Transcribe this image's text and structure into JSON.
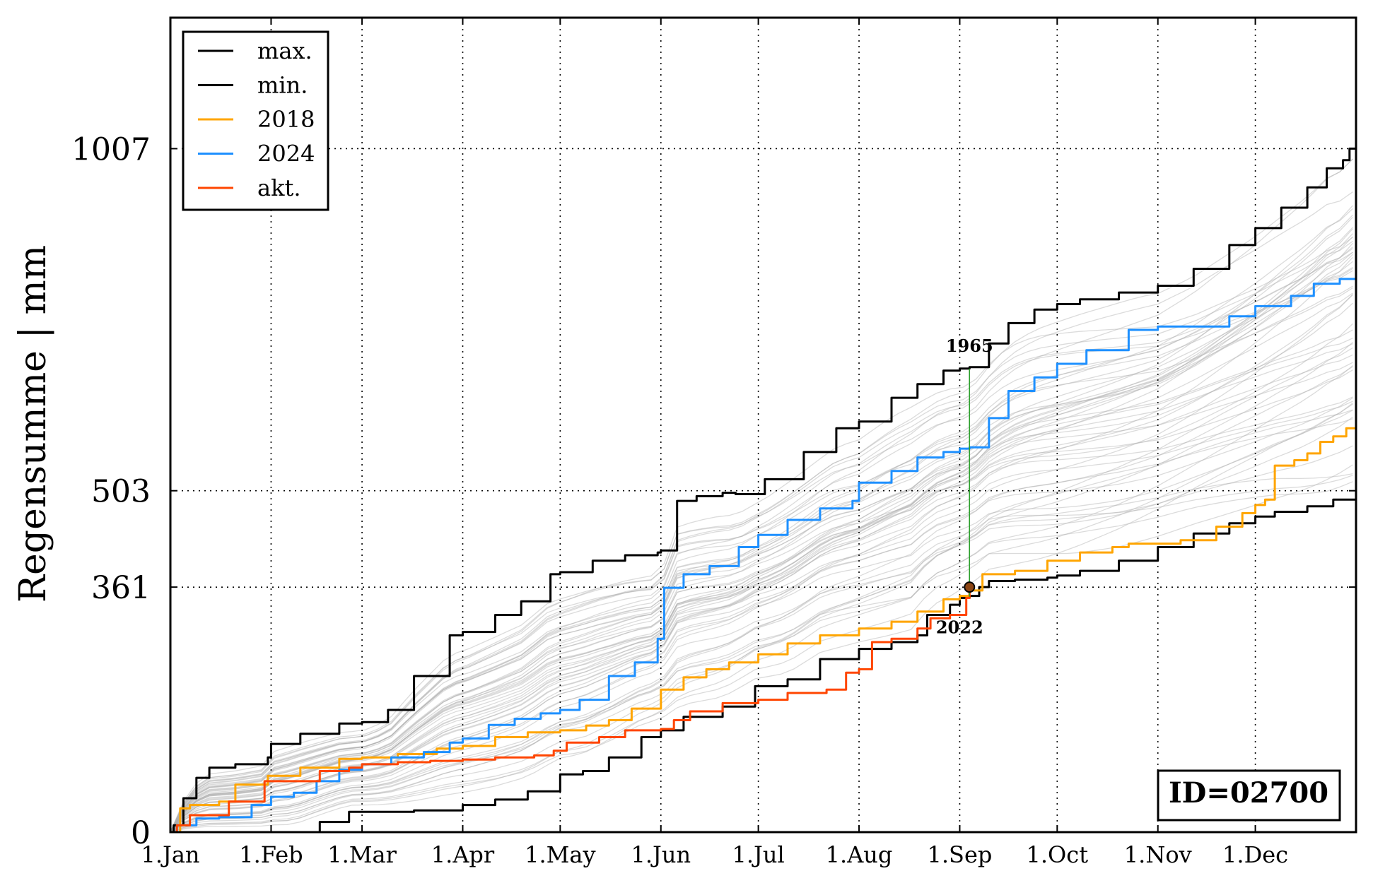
{
  "chart_data": {
    "type": "line",
    "ylabel": "Regensumme | mm",
    "x_ticks": [
      "1.Jan",
      "1.Feb",
      "1.Mar",
      "1.Apr",
      "1.May",
      "1.Jun",
      "1.Jul",
      "1.Aug",
      "1.Sep",
      "1.Oct",
      "1.Nov",
      "1.Dec"
    ],
    "x_tick_days": [
      0,
      31,
      59,
      90,
      120,
      151,
      181,
      212,
      243,
      273,
      304,
      334
    ],
    "xlim": [
      0,
      365
    ],
    "y_ticks": [
      0,
      361,
      503,
      1007
    ],
    "ylim": [
      0,
      1200
    ],
    "grid": true,
    "legend_position": "top-left",
    "legend": [
      {
        "label": "max.",
        "color": "#000000"
      },
      {
        "label": "min.",
        "color": "#000000"
      },
      {
        "label": "2018",
        "color": "#ffa500"
      },
      {
        "label": "2024",
        "color": "#1e90ff"
      },
      {
        "label": "akt.",
        "color": "#ff4500"
      }
    ],
    "id_label": "ID=02700",
    "annotations": [
      {
        "text": "1965",
        "x": 246,
        "y": 683
      },
      {
        "text": "2022",
        "x": 246,
        "y": 347
      }
    ],
    "current_point": {
      "x": 246,
      "y": 361
    },
    "series": [
      {
        "name": "max.",
        "color": "#000000",
        "points": [
          [
            0,
            0
          ],
          [
            1,
            10
          ],
          [
            4,
            50
          ],
          [
            8,
            80
          ],
          [
            12,
            95
          ],
          [
            20,
            100
          ],
          [
            30,
            110
          ],
          [
            31,
            130
          ],
          [
            40,
            145
          ],
          [
            52,
            160
          ],
          [
            59,
            162
          ],
          [
            67,
            180
          ],
          [
            75,
            230
          ],
          [
            86,
            290
          ],
          [
            90,
            295
          ],
          [
            100,
            320
          ],
          [
            108,
            340
          ],
          [
            117,
            380
          ],
          [
            120,
            383
          ],
          [
            130,
            400
          ],
          [
            140,
            408
          ],
          [
            150,
            412
          ],
          [
            151,
            415
          ],
          [
            156,
            488
          ],
          [
            162,
            495
          ],
          [
            170,
            500
          ],
          [
            174,
            498
          ],
          [
            183,
            520
          ],
          [
            195,
            560
          ],
          [
            205,
            595
          ],
          [
            212,
            605
          ],
          [
            222,
            640
          ],
          [
            230,
            660
          ],
          [
            238,
            680
          ],
          [
            243,
            683
          ],
          [
            246,
            685
          ],
          [
            252,
            720
          ],
          [
            258,
            750
          ],
          [
            266,
            770
          ],
          [
            273,
            778
          ],
          [
            280,
            785
          ],
          [
            292,
            795
          ],
          [
            304,
            805
          ],
          [
            315,
            830
          ],
          [
            326,
            865
          ],
          [
            334,
            890
          ],
          [
            342,
            920
          ],
          [
            350,
            950
          ],
          [
            356,
            978
          ],
          [
            361,
            990
          ],
          [
            363,
            1007
          ],
          [
            365,
            1007
          ]
        ]
      },
      {
        "name": "min.",
        "color": "#000000",
        "points": [
          [
            0,
            0
          ],
          [
            30,
            0
          ],
          [
            38,
            0
          ],
          [
            46,
            15
          ],
          [
            55,
            30
          ],
          [
            65,
            30
          ],
          [
            75,
            32
          ],
          [
            90,
            40
          ],
          [
            100,
            48
          ],
          [
            110,
            60
          ],
          [
            120,
            85
          ],
          [
            127,
            90
          ],
          [
            135,
            110
          ],
          [
            145,
            140
          ],
          [
            151,
            150
          ],
          [
            158,
            170
          ],
          [
            170,
            185
          ],
          [
            180,
            215
          ],
          [
            190,
            225
          ],
          [
            200,
            255
          ],
          [
            212,
            270
          ],
          [
            222,
            280
          ],
          [
            230,
            290
          ],
          [
            233,
            320
          ],
          [
            240,
            335
          ],
          [
            243,
            345
          ],
          [
            246,
            348
          ],
          [
            249,
            361
          ],
          [
            252,
            370
          ],
          [
            260,
            372
          ],
          [
            270,
            375
          ],
          [
            273,
            378
          ],
          [
            280,
            385
          ],
          [
            292,
            400
          ],
          [
            304,
            420
          ],
          [
            315,
            440
          ],
          [
            326,
            455
          ],
          [
            334,
            465
          ],
          [
            340,
            472
          ],
          [
            350,
            480
          ],
          [
            358,
            490
          ],
          [
            365,
            503
          ]
        ]
      },
      {
        "name": "2018",
        "color": "#ffa500",
        "points": [
          [
            0,
            0
          ],
          [
            3,
            35
          ],
          [
            6,
            40
          ],
          [
            15,
            45
          ],
          [
            20,
            70
          ],
          [
            30,
            83
          ],
          [
            40,
            95
          ],
          [
            52,
            108
          ],
          [
            59,
            110
          ],
          [
            70,
            115
          ],
          [
            82,
            123
          ],
          [
            90,
            127
          ],
          [
            100,
            140
          ],
          [
            110,
            147
          ],
          [
            120,
            150
          ],
          [
            128,
            157
          ],
          [
            135,
            165
          ],
          [
            142,
            182
          ],
          [
            151,
            210
          ],
          [
            158,
            228
          ],
          [
            165,
            240
          ],
          [
            172,
            250
          ],
          [
            181,
            262
          ],
          [
            190,
            278
          ],
          [
            200,
            290
          ],
          [
            212,
            300
          ],
          [
            222,
            310
          ],
          [
            230,
            325
          ],
          [
            238,
            343
          ],
          [
            243,
            348
          ],
          [
            246,
            356
          ],
          [
            250,
            380
          ],
          [
            260,
            385
          ],
          [
            270,
            400
          ],
          [
            280,
            412
          ],
          [
            290,
            420
          ],
          [
            295,
            425
          ],
          [
            304,
            425
          ],
          [
            311,
            430
          ],
          [
            322,
            450
          ],
          [
            330,
            470
          ],
          [
            334,
            482
          ],
          [
            337,
            490
          ],
          [
            340,
            540
          ],
          [
            346,
            548
          ],
          [
            350,
            558
          ],
          [
            354,
            575
          ],
          [
            358,
            583
          ],
          [
            362,
            595
          ],
          [
            365,
            597
          ]
        ]
      },
      {
        "name": "2024",
        "color": "#1e90ff",
        "points": [
          [
            0,
            0
          ],
          [
            2,
            10
          ],
          [
            8,
            20
          ],
          [
            15,
            22
          ],
          [
            25,
            40
          ],
          [
            31,
            52
          ],
          [
            38,
            58
          ],
          [
            45,
            75
          ],
          [
            52,
            92
          ],
          [
            59,
            100
          ],
          [
            68,
            110
          ],
          [
            78,
            118
          ],
          [
            86,
            132
          ],
          [
            90,
            138
          ],
          [
            98,
            158
          ],
          [
            106,
            167
          ],
          [
            114,
            175
          ],
          [
            120,
            180
          ],
          [
            126,
            195
          ],
          [
            135,
            230
          ],
          [
            143,
            250
          ],
          [
            150,
            285
          ],
          [
            152,
            360
          ],
          [
            158,
            380
          ],
          [
            166,
            392
          ],
          [
            175,
            420
          ],
          [
            181,
            438
          ],
          [
            190,
            460
          ],
          [
            200,
            477
          ],
          [
            210,
            488
          ],
          [
            212,
            515
          ],
          [
            222,
            532
          ],
          [
            230,
            552
          ],
          [
            238,
            560
          ],
          [
            243,
            565
          ],
          [
            246,
            567
          ],
          [
            252,
            610
          ],
          [
            258,
            650
          ],
          [
            266,
            670
          ],
          [
            273,
            690
          ],
          [
            282,
            710
          ],
          [
            295,
            740
          ],
          [
            304,
            745
          ],
          [
            316,
            745
          ],
          [
            326,
            760
          ],
          [
            334,
            775
          ],
          [
            345,
            790
          ],
          [
            352,
            808
          ],
          [
            360,
            815
          ],
          [
            365,
            815
          ]
        ]
      },
      {
        "name": "akt.",
        "color": "#ff4500",
        "points": [
          [
            0,
            0
          ],
          [
            2,
            10
          ],
          [
            6,
            25
          ],
          [
            14,
            25
          ],
          [
            18,
            45
          ],
          [
            26,
            45
          ],
          [
            29,
            75
          ],
          [
            40,
            75
          ],
          [
            46,
            90
          ],
          [
            55,
            95
          ],
          [
            59,
            100
          ],
          [
            70,
            103
          ],
          [
            80,
            105
          ],
          [
            90,
            107
          ],
          [
            100,
            110
          ],
          [
            112,
            113
          ],
          [
            118,
            120
          ],
          [
            122,
            132
          ],
          [
            132,
            140
          ],
          [
            140,
            150
          ],
          [
            151,
            152
          ],
          [
            155,
            165
          ],
          [
            160,
            178
          ],
          [
            170,
            190
          ],
          [
            181,
            195
          ],
          [
            190,
            205
          ],
          [
            202,
            210
          ],
          [
            208,
            235
          ],
          [
            212,
            240
          ],
          [
            216,
            280
          ],
          [
            222,
            285
          ],
          [
            230,
            300
          ],
          [
            234,
            315
          ],
          [
            240,
            320
          ],
          [
            245,
            345
          ],
          [
            246,
            361
          ]
        ]
      }
    ]
  }
}
